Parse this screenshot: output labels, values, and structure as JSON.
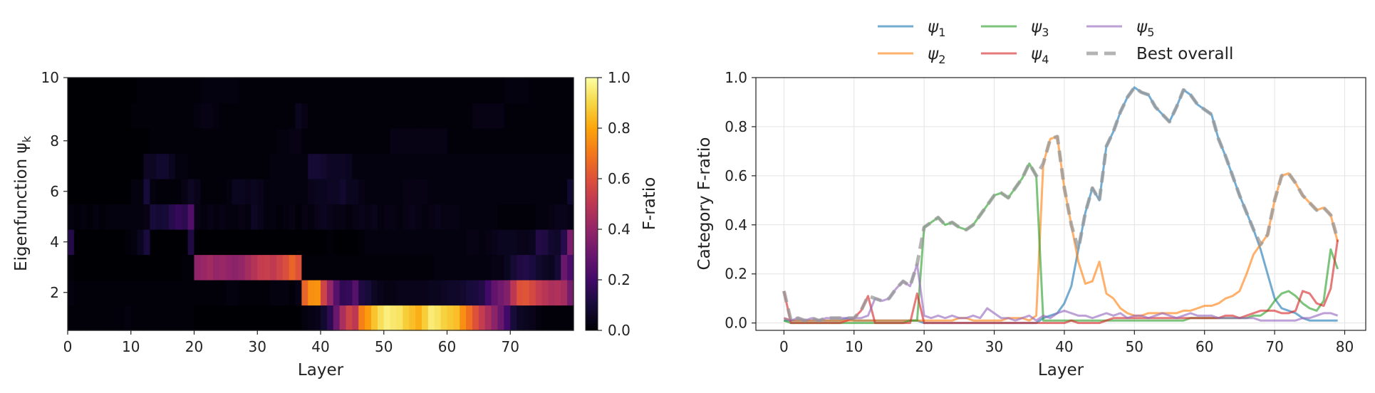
{
  "chart_data": [
    {
      "type": "heatmap",
      "xlabel": "Layer",
      "ylabel": "Eigenfunction ψ",
      "ylabel_sub": "k",
      "colorbar_label": "F-ratio",
      "colormap": "inferno",
      "x_range": [
        0,
        79
      ],
      "y_range": [
        1,
        10
      ],
      "value_range": [
        0.0,
        1.0
      ],
      "x_ticks": [
        "0",
        "10",
        "20",
        "30",
        "40",
        "50",
        "60",
        "70"
      ],
      "y_ticks": [
        "2",
        "4",
        "6",
        "8",
        "10"
      ],
      "colorbar_ticks": [
        "0.0",
        "0.2",
        "0.4",
        "0.6",
        "0.8",
        "1.0"
      ],
      "rows": {
        "psi1": [
          0.01,
          0.01,
          0.01,
          0.01,
          0.01,
          0.01,
          0.01,
          0.01,
          0.01,
          0.02,
          0.01,
          0.01,
          0.01,
          0.01,
          0.01,
          0.01,
          0.01,
          0.01,
          0.01,
          0.01,
          0.0,
          0.0,
          0.0,
          0.0,
          0.0,
          0.0,
          0.0,
          0.0,
          0.0,
          0.0,
          0.0,
          0.0,
          0.0,
          0.0,
          0.0,
          0.0,
          0.0,
          0.02,
          0.03,
          0.04,
          0.08,
          0.15,
          0.3,
          0.45,
          0.55,
          0.5,
          0.72,
          0.78,
          0.86,
          0.92,
          0.96,
          0.94,
          0.93,
          0.88,
          0.85,
          0.82,
          0.88,
          0.95,
          0.93,
          0.89,
          0.87,
          0.85,
          0.75,
          0.68,
          0.6,
          0.52,
          0.45,
          0.38,
          0.3,
          0.2,
          0.1,
          0.06,
          0.05,
          0.04,
          0.02,
          0.01,
          0.01,
          0.01,
          0.01,
          0.01
        ],
        "psi2": [
          0.02,
          0.01,
          0.01,
          0.01,
          0.01,
          0.01,
          0.01,
          0.01,
          0.01,
          0.01,
          0.01,
          0.01,
          0.01,
          0.01,
          0.01,
          0.01,
          0.01,
          0.01,
          0.01,
          0.01,
          0.01,
          0.01,
          0.01,
          0.01,
          0.01,
          0.02,
          0.02,
          0.01,
          0.01,
          0.01,
          0.01,
          0.01,
          0.02,
          0.02,
          0.02,
          0.01,
          0.03,
          0.65,
          0.75,
          0.76,
          0.55,
          0.4,
          0.25,
          0.16,
          0.17,
          0.25,
          0.12,
          0.1,
          0.06,
          0.04,
          0.03,
          0.03,
          0.04,
          0.04,
          0.04,
          0.04,
          0.04,
          0.05,
          0.05,
          0.06,
          0.07,
          0.07,
          0.08,
          0.1,
          0.11,
          0.13,
          0.2,
          0.28,
          0.32,
          0.36,
          0.5,
          0.6,
          0.61,
          0.57,
          0.52,
          0.49,
          0.46,
          0.47,
          0.44,
          0.33
        ],
        "psi3": [
          0.01,
          0.0,
          0.0,
          0.0,
          0.0,
          0.0,
          0.0,
          0.0,
          0.0,
          0.0,
          0.0,
          0.0,
          0.0,
          0.0,
          0.0,
          0.0,
          0.0,
          0.0,
          0.01,
          0.01,
          0.39,
          0.41,
          0.43,
          0.4,
          0.41,
          0.39,
          0.38,
          0.4,
          0.44,
          0.48,
          0.52,
          0.53,
          0.51,
          0.55,
          0.59,
          0.65,
          0.6,
          0.01,
          0.01,
          0.01,
          0.01,
          0.01,
          0.01,
          0.01,
          0.01,
          0.01,
          0.01,
          0.01,
          0.01,
          0.01,
          0.01,
          0.01,
          0.01,
          0.01,
          0.01,
          0.01,
          0.01,
          0.01,
          0.02,
          0.02,
          0.02,
          0.02,
          0.02,
          0.02,
          0.02,
          0.02,
          0.02,
          0.03,
          0.03,
          0.05,
          0.09,
          0.12,
          0.13,
          0.11,
          0.08,
          0.06,
          0.05,
          0.09,
          0.3,
          0.22
        ],
        "psi4": [
          0.13,
          0.0,
          0.0,
          0.0,
          0.0,
          0.0,
          0.0,
          0.0,
          0.0,
          0.01,
          0.02,
          0.05,
          0.11,
          0.0,
          0.0,
          0.0,
          0.0,
          0.0,
          0.0,
          0.12,
          0.0,
          0.0,
          0.0,
          0.0,
          0.0,
          0.0,
          0.0,
          0.0,
          0.0,
          0.0,
          0.0,
          0.0,
          0.0,
          0.0,
          0.0,
          0.0,
          0.0,
          0.0,
          0.0,
          0.0,
          0.0,
          0.01,
          0.0,
          0.0,
          0.0,
          0.0,
          0.01,
          0.02,
          0.02,
          0.02,
          0.02,
          0.02,
          0.02,
          0.02,
          0.02,
          0.02,
          0.02,
          0.02,
          0.02,
          0.02,
          0.02,
          0.02,
          0.02,
          0.03,
          0.03,
          0.02,
          0.03,
          0.04,
          0.05,
          0.05,
          0.05,
          0.04,
          0.04,
          0.05,
          0.13,
          0.12,
          0.08,
          0.07,
          0.14,
          0.34
        ],
        "psi5": [
          0.02,
          0.01,
          0.02,
          0.01,
          0.02,
          0.01,
          0.02,
          0.02,
          0.02,
          0.02,
          0.02,
          0.02,
          0.03,
          0.1,
          0.09,
          0.1,
          0.14,
          0.17,
          0.15,
          0.24,
          0.03,
          0.02,
          0.03,
          0.02,
          0.03,
          0.02,
          0.02,
          0.03,
          0.02,
          0.06,
          0.04,
          0.02,
          0.02,
          0.01,
          0.02,
          0.03,
          0.01,
          0.03,
          0.02,
          0.04,
          0.05,
          0.04,
          0.03,
          0.03,
          0.02,
          0.03,
          0.04,
          0.03,
          0.04,
          0.02,
          0.03,
          0.03,
          0.02,
          0.03,
          0.04,
          0.03,
          0.02,
          0.03,
          0.04,
          0.03,
          0.03,
          0.03,
          0.02,
          0.02,
          0.02,
          0.02,
          0.02,
          0.02,
          0.01,
          0.01,
          0.01,
          0.01,
          0.01,
          0.01,
          0.02,
          0.02,
          0.03,
          0.04,
          0.04,
          0.03
        ],
        "psi6": [
          0.0,
          0.0,
          0.0,
          0.0,
          0.0,
          0.0,
          0.0,
          0.0,
          0.0,
          0.0,
          0.02,
          0.02,
          0.1,
          0.02,
          0.01,
          0.01,
          0.01,
          0.01,
          0.03,
          0.06,
          0.04,
          0.01,
          0.01,
          0.01,
          0.01,
          0.02,
          0.05,
          0.05,
          0.04,
          0.05,
          0.04,
          0.02,
          0.02,
          0.02,
          0.02,
          0.02,
          0.02,
          0.02,
          0.04,
          0.05,
          0.05,
          0.06,
          0.06,
          0.08,
          0.05,
          0.05,
          0.03,
          0.02,
          0.02,
          0.02,
          0.02,
          0.02,
          0.02,
          0.03,
          0.03,
          0.03,
          0.03,
          0.02,
          0.02,
          0.02,
          0.02,
          0.02,
          0.02,
          0.02,
          0.02,
          0.02,
          0.02,
          0.02,
          0.02,
          0.02,
          0.02,
          0.02,
          0.02,
          0.02,
          0.02,
          0.02,
          0.02,
          0.02,
          0.02,
          0.08
        ],
        "psi7": [
          0.0,
          0.0,
          0.0,
          0.0,
          0.0,
          0.0,
          0.0,
          0.0,
          0.0,
          0.0,
          0.0,
          0.0,
          0.06,
          0.06,
          0.08,
          0.08,
          0.05,
          0.02,
          0.02,
          0.01,
          0.01,
          0.01,
          0.01,
          0.01,
          0.01,
          0.01,
          0.01,
          0.01,
          0.01,
          0.01,
          0.01,
          0.01,
          0.02,
          0.02,
          0.02,
          0.02,
          0.02,
          0.02,
          0.09,
          0.09,
          0.08,
          0.06,
          0.06,
          0.06,
          0.05,
          0.02,
          0.02,
          0.02,
          0.02,
          0.02,
          0.02,
          0.02,
          0.02,
          0.02,
          0.02,
          0.02,
          0.02,
          0.02,
          0.02,
          0.02,
          0.02,
          0.02,
          0.02,
          0.02,
          0.02,
          0.02,
          0.02,
          0.02,
          0.02,
          0.02,
          0.02,
          0.02,
          0.02,
          0.02,
          0.02,
          0.02,
          0.02,
          0.02,
          0.02,
          0.02
        ],
        "psi8": [
          0.0,
          0.0,
          0.0,
          0.0,
          0.0,
          0.0,
          0.0,
          0.0,
          0.0,
          0.0,
          0.0,
          0.0,
          0.0,
          0.01,
          0.01,
          0.01,
          0.01,
          0.01,
          0.01,
          0.01,
          0.01,
          0.01,
          0.01,
          0.01,
          0.01,
          0.01,
          0.01,
          0.01,
          0.01,
          0.01,
          0.01,
          0.01,
          0.01,
          0.02,
          0.02,
          0.03,
          0.03,
          0.01,
          0.01,
          0.01,
          0.01,
          0.01,
          0.01,
          0.01,
          0.01,
          0.01,
          0.01,
          0.01,
          0.01,
          0.01,
          0.01,
          0.03,
          0.03,
          0.03,
          0.03,
          0.03,
          0.03,
          0.03,
          0.03,
          0.03,
          0.01,
          0.01,
          0.01,
          0.01,
          0.01,
          0.01,
          0.01,
          0.01,
          0.01,
          0.01,
          0.01,
          0.01,
          0.01,
          0.01,
          0.01,
          0.01,
          0.01,
          0.01,
          0.01,
          0.01
        ],
        "psi9": [
          0.0,
          0.0,
          0.0,
          0.0,
          0.0,
          0.0,
          0.0,
          0.0,
          0.0,
          0.0,
          0.01,
          0.01,
          0.01,
          0.01,
          0.01,
          0.01,
          0.01,
          0.01,
          0.01,
          0.01,
          0.02,
          0.03,
          0.03,
          0.02,
          0.01,
          0.01,
          0.01,
          0.01,
          0.01,
          0.01,
          0.01,
          0.01,
          0.01,
          0.01,
          0.01,
          0.01,
          0.05,
          0.03,
          0.01,
          0.01,
          0.01,
          0.01,
          0.01,
          0.01,
          0.01,
          0.01,
          0.01,
          0.01,
          0.01,
          0.01,
          0.01,
          0.01,
          0.01,
          0.01,
          0.01,
          0.01,
          0.01,
          0.01,
          0.01,
          0.01,
          0.01,
          0.01,
          0.01,
          0.01,
          0.03,
          0.03,
          0.03,
          0.03,
          0.03,
          0.01,
          0.01,
          0.01,
          0.01,
          0.01,
          0.01,
          0.01,
          0.01,
          0.01,
          0.01,
          0.01
        ],
        "psi10": [
          0.0,
          0.0,
          0.0,
          0.0,
          0.0,
          0.0,
          0.0,
          0.0,
          0.0,
          0.0,
          0.0,
          0.01,
          0.01,
          0.01,
          0.01,
          0.01,
          0.01,
          0.01,
          0.01,
          0.01,
          0.01,
          0.02,
          0.02,
          0.02,
          0.02,
          0.02,
          0.02,
          0.01,
          0.01,
          0.01,
          0.01,
          0.01,
          0.01,
          0.01,
          0.01,
          0.01,
          0.01,
          0.01,
          0.01,
          0.01,
          0.01,
          0.01,
          0.01,
          0.01,
          0.01,
          0.01,
          0.01,
          0.01,
          0.01,
          0.01,
          0.01,
          0.01,
          0.01,
          0.01,
          0.01,
          0.01,
          0.01,
          0.01,
          0.01,
          0.01,
          0.01,
          0.01,
          0.01,
          0.01,
          0.01,
          0.01,
          0.01,
          0.01,
          0.01,
          0.02,
          0.02,
          0.02,
          0.02,
          0.01,
          0.01,
          0.01,
          0.01,
          0.01,
          0.01,
          0.01
        ]
      }
    },
    {
      "type": "line",
      "xlabel": "Layer",
      "ylabel": "Category F-ratio",
      "xlim": [
        -4,
        83
      ],
      "ylim": [
        -0.03,
        1.0
      ],
      "x_ticks": [
        "0",
        "10",
        "20",
        "30",
        "40",
        "50",
        "60",
        "70",
        "80"
      ],
      "y_ticks": [
        "0.0",
        "0.2",
        "0.4",
        "0.6",
        "0.8",
        "1.0"
      ],
      "grid": true,
      "legend_position": "top-center",
      "legend": [
        {
          "key": "psi1",
          "symbol": "ψ",
          "sub": "1",
          "color": "#1f77b4",
          "dashed": false
        },
        {
          "key": "psi2",
          "symbol": "ψ",
          "sub": "2",
          "color": "#ff7f0e",
          "dashed": false
        },
        {
          "key": "psi3",
          "symbol": "ψ",
          "sub": "3",
          "color": "#2ca02c",
          "dashed": false
        },
        {
          "key": "psi4",
          "symbol": "ψ",
          "sub": "4",
          "color": "#d62728",
          "dashed": false
        },
        {
          "key": "psi5",
          "symbol": "ψ",
          "sub": "5",
          "color": "#9467bd",
          "dashed": false
        },
        {
          "key": "best",
          "symbol": "Best overall",
          "sub": "",
          "color": "#999999",
          "dashed": true
        }
      ],
      "x": "0..79"
    }
  ]
}
